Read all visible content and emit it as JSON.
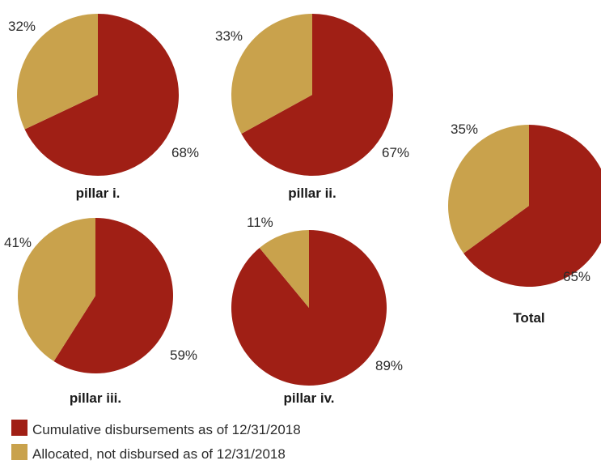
{
  "chart_data": {
    "type": "pie",
    "colors": {
      "disbursed": "#a01f15",
      "allocated": "#c9a24c"
    },
    "legend": [
      {
        "key": "disbursed",
        "label": "Cumulative disbursements as of 12/31/2018"
      },
      {
        "key": "allocated",
        "label": "Allocated, not disbursed as of 12/31/2018"
      }
    ],
    "charts": [
      {
        "title": "pillar i.",
        "disbursed": 68,
        "allocated": 32,
        "disbursed_label": "68%",
        "allocated_label": "32%"
      },
      {
        "title": "pillar ii.",
        "disbursed": 67,
        "allocated": 33,
        "disbursed_label": "67%",
        "allocated_label": "33%"
      },
      {
        "title": "pillar iii.",
        "disbursed": 59,
        "allocated": 41,
        "disbursed_label": "59%",
        "allocated_label": "41%"
      },
      {
        "title": "pillar iv.",
        "disbursed": 89,
        "allocated": 11,
        "disbursed_label": "89%",
        "allocated_label": "11%"
      },
      {
        "title": "Total",
        "disbursed": 65,
        "allocated": 35,
        "disbursed_label": "65%",
        "allocated_label": "35%"
      }
    ]
  }
}
